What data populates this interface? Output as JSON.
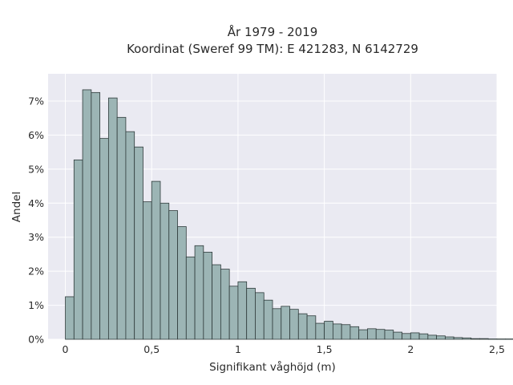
{
  "chart_data": {
    "type": "bar",
    "title": "År 1979 - 2019",
    "subtitle": "Koordinat (Sweref 99 TM): E 421283, N 6142729",
    "xlabel": "Signifikant våghöjd (m)",
    "ylabel": "Andel",
    "xlim": [
      -0.1,
      2.5
    ],
    "ylim": [
      0,
      0.078
    ],
    "x_ticks": [
      0,
      0.5,
      1,
      1.5,
      2,
      2.5
    ],
    "x_tick_labels": [
      "0",
      "0,5",
      "1",
      "1,5",
      "2",
      "2,5"
    ],
    "y_ticks": [
      0,
      0.01,
      0.02,
      0.03,
      0.04,
      0.05,
      0.06,
      0.07
    ],
    "y_tick_labels": [
      "0%",
      "1%",
      "2%",
      "3%",
      "4%",
      "5%",
      "6%",
      "7%"
    ],
    "bin_start": 0.0,
    "bin_width": 0.05,
    "values": [
      0.0125,
      0.0527,
      0.0733,
      0.0725,
      0.059,
      0.0709,
      0.0652,
      0.061,
      0.0565,
      0.0404,
      0.0464,
      0.04,
      0.0378,
      0.0331,
      0.0242,
      0.0275,
      0.0256,
      0.0219,
      0.0206,
      0.0156,
      0.0169,
      0.015,
      0.0137,
      0.0115,
      0.009,
      0.0097,
      0.0088,
      0.0075,
      0.0069,
      0.0047,
      0.0053,
      0.0045,
      0.0043,
      0.0037,
      0.0028,
      0.0031,
      0.0029,
      0.0027,
      0.0021,
      0.0017,
      0.0019,
      0.0016,
      0.0012,
      0.001,
      0.0007,
      0.0005,
      0.0004,
      0.0002,
      0.0002,
      0.0001,
      0.0001,
      0.0001,
      0.0001,
      0.0001
    ],
    "grid": true,
    "colors": {
      "bar_fill": "#9cb5b5",
      "bar_edge": "#2f3b3b",
      "plot_background": "#eaeaf2",
      "grid": "#ffffff"
    }
  }
}
